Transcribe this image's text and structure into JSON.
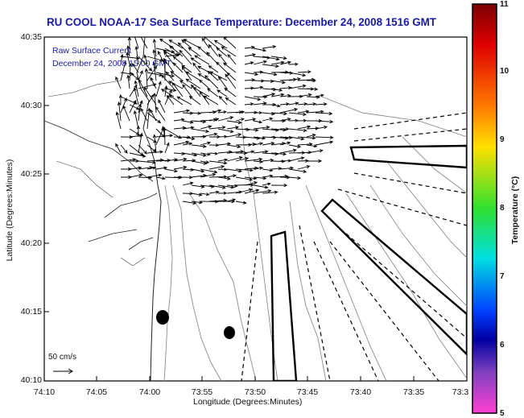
{
  "title": "RU COOL  NOAA-17  Sea Surface Temperature:  December 24, 2008 1516 GMT",
  "legend": {
    "line1": "Raw Surface Current",
    "line2": "December 24, 2008 15:00 GMT"
  },
  "axes": {
    "ylabel": "Latitude (Degrees:Minutes)",
    "xlabel": "Longitude (Degrees:Minutes)",
    "yticks": [
      "40:35",
      "40:30",
      "40:25",
      "40:20",
      "40:15",
      "40:10"
    ],
    "xticks": [
      "74:10",
      "74:05",
      "74:00",
      "73:55",
      "73:50",
      "73:45",
      "73:40",
      "73:35",
      "73:3"
    ]
  },
  "scale": {
    "label": "50 cm/s"
  },
  "colorbar": {
    "label": "Temperature (°C)",
    "ticks": [
      "11",
      "10",
      "9",
      "8",
      "7",
      "6",
      "5"
    ]
  },
  "colors": {
    "title": "#1a1aa0",
    "frame": "#000000",
    "contour": "#8c8c8c"
  }
}
